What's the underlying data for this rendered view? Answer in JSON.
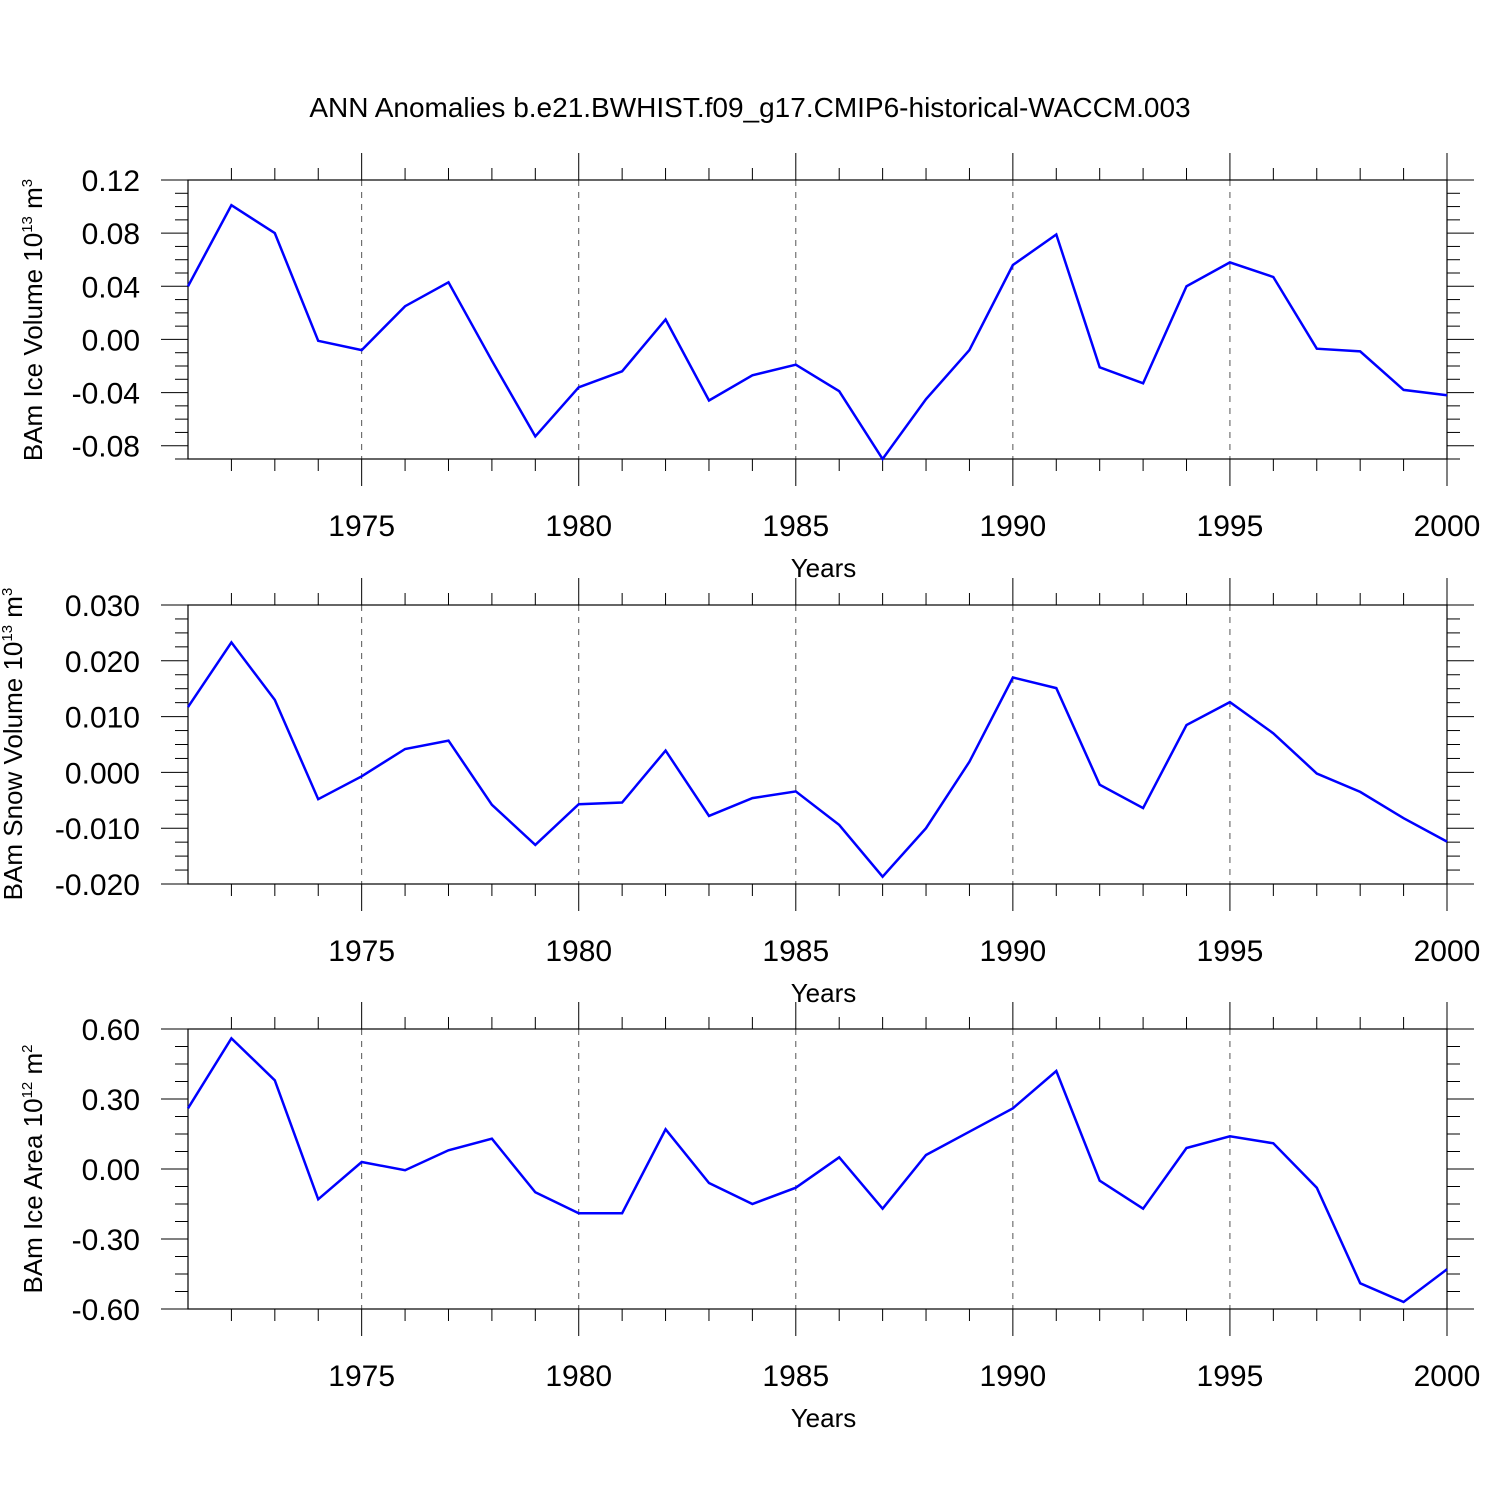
{
  "title": "ANN Anomalies b.e21.BWHIST.f09_g17.CMIP6-historical-WACCM.003",
  "line_color": "#0000ff",
  "chart_data": [
    {
      "type": "line",
      "ylabel": {
        "text": "BAm Ice Volume 10",
        "sup1": "13",
        "unit": " m",
        "sup2": "3"
      },
      "xlabel": "Years",
      "xlim": [
        1971,
        2000
      ],
      "ylim": [
        -0.09,
        0.12
      ],
      "x_ticks": [
        1975,
        1980,
        1985,
        1990,
        1995,
        2000
      ],
      "y_ticks": [
        -0.08,
        -0.04,
        0.0,
        0.04,
        0.08,
        0.12
      ],
      "y_tick_labels": [
        "-0.08",
        "-0.04",
        "0.00",
        "0.04",
        "0.08",
        "0.12"
      ],
      "x": [
        1971,
        1972,
        1973,
        1974,
        1975,
        1976,
        1977,
        1978,
        1979,
        1980,
        1981,
        1982,
        1983,
        1984,
        1985,
        1986,
        1987,
        1988,
        1989,
        1990,
        1991,
        1992,
        1993,
        1994,
        1995,
        1996,
        1997,
        1998,
        1999,
        2000
      ],
      "values": [
        0.04,
        0.101,
        0.08,
        -0.001,
        -0.008,
        0.025,
        0.043,
        -0.016,
        -0.073,
        -0.036,
        -0.024,
        0.015,
        -0.046,
        -0.027,
        -0.019,
        -0.039,
        -0.09,
        -0.045,
        -0.008,
        0.056,
        0.079,
        -0.021,
        -0.033,
        0.04,
        0.058,
        0.047,
        -0.007,
        -0.009,
        -0.038,
        -0.042
      ]
    },
    {
      "type": "line",
      "ylabel": {
        "text": "BAm Snow Volume 10",
        "sup1": "13",
        "unit": " m",
        "sup2": "3"
      },
      "xlabel": "Years",
      "xlim": [
        1971,
        2000
      ],
      "ylim": [
        -0.02,
        0.03
      ],
      "x_ticks": [
        1975,
        1980,
        1985,
        1990,
        1995,
        2000
      ],
      "y_ticks": [
        -0.02,
        -0.01,
        0.0,
        0.01,
        0.02,
        0.03
      ],
      "y_tick_labels": [
        "-0.020",
        "-0.010",
        "0.000",
        "0.010",
        "0.020",
        "0.030"
      ],
      "x": [
        1971,
        1972,
        1973,
        1974,
        1975,
        1976,
        1977,
        1978,
        1979,
        1980,
        1981,
        1982,
        1983,
        1984,
        1985,
        1986,
        1987,
        1988,
        1989,
        1990,
        1991,
        1992,
        1993,
        1994,
        1995,
        1996,
        1997,
        1998,
        1999,
        2000
      ],
      "values": [
        0.0117,
        0.0233,
        0.013,
        -0.0048,
        -0.0007,
        0.0042,
        0.0057,
        -0.0058,
        -0.013,
        -0.0057,
        -0.0054,
        0.0039,
        -0.0078,
        -0.0046,
        -0.0034,
        -0.0094,
        -0.0187,
        -0.01,
        0.0019,
        0.017,
        0.0151,
        -0.0022,
        -0.0064,
        0.0085,
        0.0126,
        0.007,
        -0.0002,
        -0.0035,
        -0.0082,
        -0.0124
      ]
    },
    {
      "type": "line",
      "ylabel": {
        "text": "BAm Ice Area 10",
        "sup1": "12",
        "unit": " m",
        "sup2": "2"
      },
      "xlabel": "Years",
      "xlim": [
        1971,
        2000
      ],
      "ylim": [
        -0.6,
        0.6
      ],
      "x_ticks": [
        1975,
        1980,
        1985,
        1990,
        1995,
        2000
      ],
      "y_ticks": [
        -0.6,
        -0.3,
        0.0,
        0.3,
        0.6
      ],
      "y_tick_labels": [
        "-0.60",
        "-0.30",
        "0.00",
        "0.30",
        "0.60"
      ],
      "x": [
        1971,
        1972,
        1973,
        1974,
        1975,
        1976,
        1977,
        1978,
        1979,
        1980,
        1981,
        1982,
        1983,
        1984,
        1985,
        1986,
        1987,
        1988,
        1989,
        1990,
        1991,
        1992,
        1993,
        1994,
        1995,
        1996,
        1997,
        1998,
        1999,
        2000
      ],
      "values": [
        0.26,
        0.56,
        0.38,
        -0.13,
        0.03,
        -0.005,
        0.08,
        0.13,
        -0.1,
        -0.19,
        -0.19,
        0.17,
        -0.06,
        -0.15,
        -0.08,
        0.05,
        -0.17,
        0.06,
        0.16,
        0.26,
        0.42,
        -0.05,
        -0.17,
        0.09,
        0.14,
        0.11,
        -0.08,
        -0.49,
        -0.57,
        -0.43
      ]
    }
  ]
}
